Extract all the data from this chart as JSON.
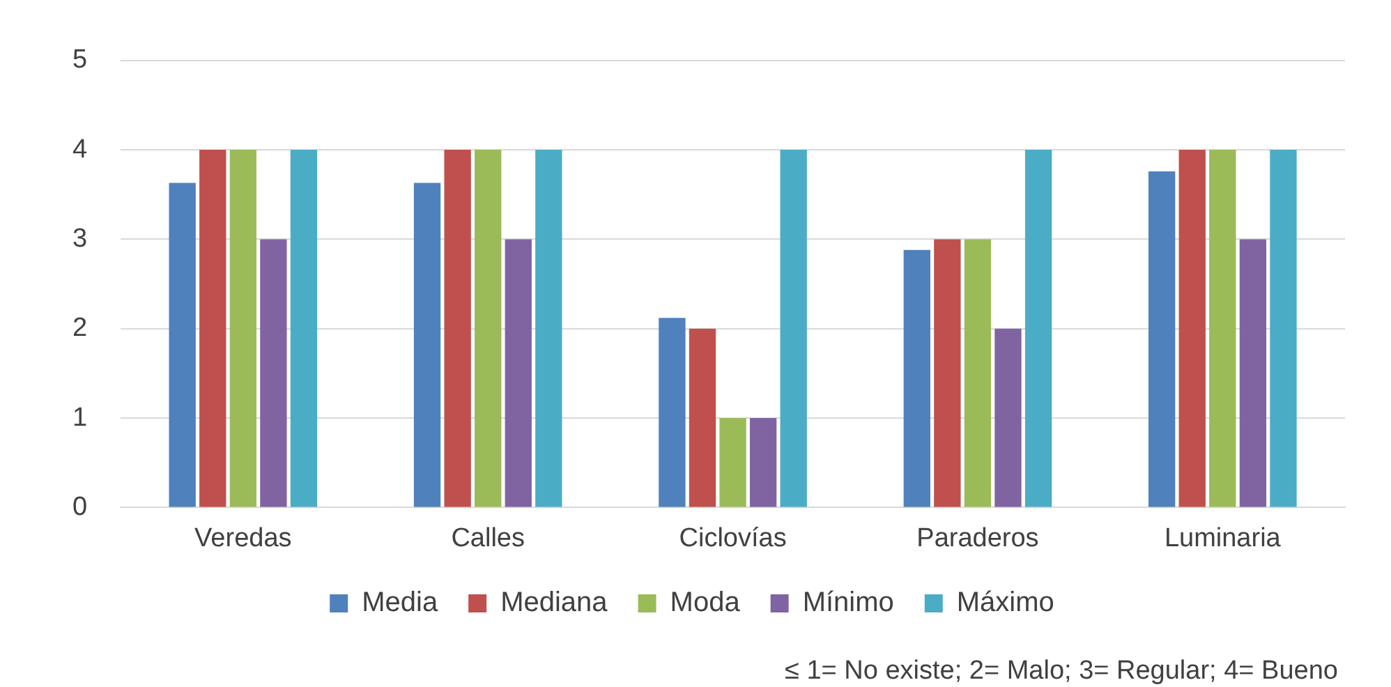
{
  "chart_data": {
    "type": "bar",
    "categories": [
      "Veredas",
      "Calles",
      "Ciclovías",
      "Paraderos",
      "Luminaria"
    ],
    "series": [
      {
        "name": "Media",
        "color": "#4f81bd",
        "values": [
          3.63,
          3.63,
          2.12,
          2.88,
          3.76
        ]
      },
      {
        "name": "Mediana",
        "color": "#c0504d",
        "values": [
          4,
          4,
          2,
          3,
          4
        ]
      },
      {
        "name": "Moda",
        "color": "#9bbb59",
        "values": [
          4,
          4,
          1,
          3,
          4
        ]
      },
      {
        "name": "Mínimo",
        "color": "#8064a2",
        "values": [
          3,
          3,
          1,
          2,
          3
        ]
      },
      {
        "name": "Máximo",
        "color": "#4bacc6",
        "values": [
          4,
          4,
          4,
          4,
          4
        ]
      }
    ],
    "ylim": [
      0,
      5
    ],
    "yticks": [
      0,
      1,
      2,
      3,
      4,
      5
    ],
    "grid": "y",
    "legend": "bottom",
    "annotations": [
      "≤ 1= No existe; 2= Malo; 3= Regular; 4= Bueno"
    ]
  }
}
